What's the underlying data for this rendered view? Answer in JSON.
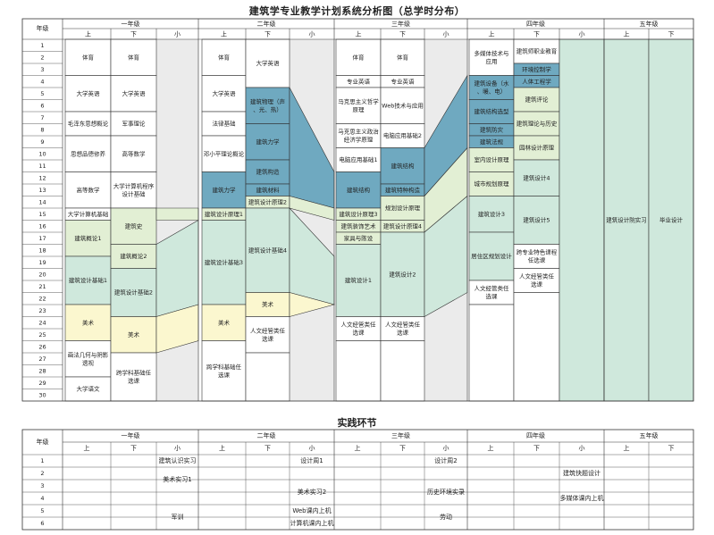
{
  "title": "建筑学专业教学计划系统分析图（总学时分布）",
  "practice_title": "实践环节",
  "colors": {
    "grey": "#ebebeb",
    "blue": "#6fa9c0",
    "light_green": "#e2efd4",
    "mint": "#cfe8dc",
    "cream": "#fbf7cf",
    "white": "#ffffff",
    "line": "#333333"
  },
  "header": {
    "grade_label": "年级",
    "years": [
      "一年级",
      "二年级",
      "三年级",
      "四年级",
      "五年级"
    ],
    "sems": [
      "上",
      "下",
      "小"
    ]
  },
  "rows": [
    "1",
    "2",
    "3",
    "4",
    "5",
    "6",
    "7",
    "8",
    "9",
    "10",
    "11",
    "12",
    "13",
    "14",
    "15",
    "16",
    "17",
    "18",
    "19",
    "20",
    "21",
    "22",
    "23",
    "24",
    "25",
    "26",
    "27",
    "28",
    "29",
    "30"
  ],
  "courses": {
    "y1u": [
      "体育",
      "大学英语",
      "毛泽东思想概论",
      "思想品德修养",
      "高等数学",
      "大学计算机基础",
      "建筑概论1",
      "建筑设计基础1",
      "美术",
      "画法几何与阴影透视",
      "大学语文"
    ],
    "y1d": [
      "体育",
      "大学英语",
      "军事理论",
      "高等数学",
      "大学计算机程序设计基础",
      "建筑史",
      "建筑概论2",
      "建筑设计基础2",
      "美术",
      "跨学科基础任选课"
    ],
    "y2u": [
      "体育",
      "大学英语",
      "法律基础",
      "邓小平理论概论",
      "建筑力学",
      "建筑设计原理1",
      "建筑设计基础3",
      "美术",
      "跨学科基础任选课"
    ],
    "y2d": [
      "大学英语",
      "建筑物理（声、光、热）",
      "建筑力学",
      "建筑构造",
      "建筑材料",
      "建筑设计原理2",
      "建筑设计基础4",
      "美术",
      "人文经管类任选课"
    ],
    "y3u": [
      "体育",
      "专业英语",
      "马克思主义哲学原理",
      "马克思主义政治经济学原理",
      "电脑应用基础1",
      "建筑结构",
      "建筑设计原理3",
      "建筑装饰艺术",
      "家具与陈设",
      "建筑设计1",
      "人文经管类任选课"
    ],
    "y3d": [
      "体育",
      "专业英语",
      "Web技术与应用",
      "电脑应用基础2",
      "建筑结构",
      "建筑特种构造",
      "规划设计原理",
      "建筑设计原理4",
      "建筑设计2",
      "人文经管类任选课"
    ],
    "y4u": [
      "多媒体技术与应用",
      "建筑设备（水、暖、电）",
      "建筑结构选型",
      "建筑防灾",
      "建筑法规",
      "室内设计原理",
      "城市规划原理",
      "建筑设计3",
      "居住区规划设计",
      "人文经管类任选课"
    ],
    "y4d": [
      "建筑师职业教育",
      "环境控制学",
      "人体工程学",
      "建筑评论",
      "建筑理论与历史",
      "园林设计原理",
      "建筑设计4",
      "建筑设计5",
      "跨专业特色课程任选课",
      "人文经管类任选课"
    ],
    "y5": [
      "建筑设计院实习",
      "毕业设计"
    ]
  },
  "practice": {
    "grade_label": "年级",
    "rows": [
      "1",
      "2",
      "3",
      "4",
      "5",
      "6"
    ],
    "items": [
      "建筑认识实习",
      "设计周1",
      "设计周2",
      "美术实习1",
      "建筑快题设计",
      "美术实习2",
      "历史环境实录",
      "多媒体课内上机",
      "军训",
      "Web课内上机",
      "劳动",
      "计算机课内上机"
    ]
  }
}
